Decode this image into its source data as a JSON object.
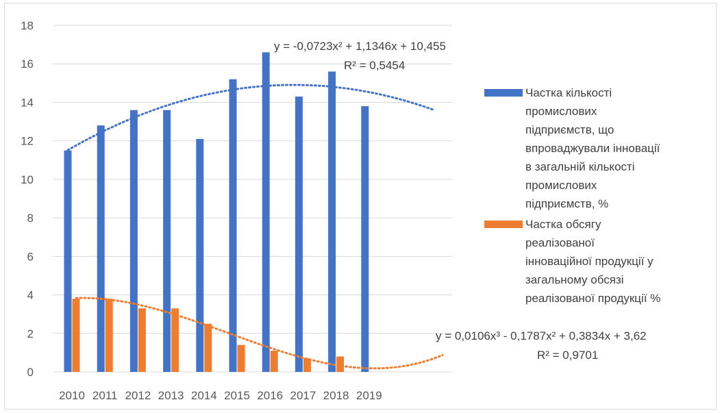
{
  "chart_data": {
    "type": "bar",
    "categories": [
      "2010",
      "2011",
      "2012",
      "2013",
      "2014",
      "2015",
      "2016",
      "2017",
      "2018",
      "2019"
    ],
    "series": [
      {
        "name": "Частка кількості промислових підприємств, що впроваджували інновації в загальній кількості промислових підприємств, %",
        "legend_lines": [
          "Частка кількості",
          "промислових",
          "підприємств, що",
          "впроваджували інновації",
          "в загальній кількості",
          "промислових",
          "підприємств, %"
        ],
        "values": [
          11.5,
          12.8,
          13.6,
          13.6,
          12.1,
          15.2,
          16.6,
          14.3,
          15.6,
          13.8
        ],
        "color": "#4472C4",
        "trendline": {
          "type": "polynomial",
          "coefficients": [
            10.455,
            1.1346,
            -0.0723
          ],
          "equation": "y = -0,0723x² + 1,1346x + 10,455",
          "r2": "R² = 0,5454"
        }
      },
      {
        "name": "Частка обсягу реалізованої інноваційної продукції у загальному обсязі реалізованої продукції %",
        "legend_lines": [
          "Частка обсягу",
          "реалізованої",
          "інноваційної продукції  у",
          "загальному обсязі",
          "реалізованої продукції  %"
        ],
        "values": [
          3.8,
          3.8,
          3.3,
          3.3,
          2.5,
          1.4,
          1.1,
          0.7,
          0.8,
          null
        ],
        "color": "#ED7D31",
        "trendline": {
          "type": "polynomial",
          "coefficients": [
            3.62,
            0.3834,
            -0.1787,
            0.0106
          ],
          "equation": "y = 0,0106x³ - 0,1787x² + 0,3834x + 3,62",
          "r2": "R² = 0,9701"
        }
      }
    ],
    "yticks": [
      "0",
      "2",
      "4",
      "6",
      "8",
      "10",
      "12",
      "14",
      "16",
      "18"
    ],
    "ylim": [
      0,
      18
    ],
    "grid": true,
    "legend_position": "right",
    "title": "",
    "xlabel": "",
    "ylabel": ""
  }
}
